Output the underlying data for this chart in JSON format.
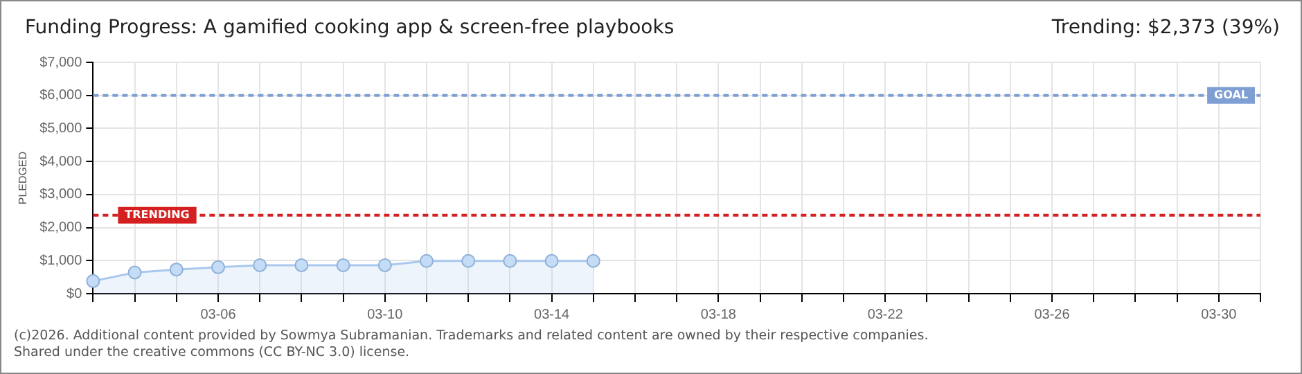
{
  "chart_data": {
    "type": "area",
    "title": "Funding Progress: A gamified cooking app & screen-free playbooks",
    "ylabel": "PLEDGED",
    "categories": [
      null,
      null,
      null,
      "03-06",
      null,
      null,
      null,
      "03-10",
      null,
      null,
      null,
      "03-14",
      null,
      null,
      null,
      "03-18",
      null,
      null,
      null,
      "03-22",
      null,
      null,
      null,
      "03-26",
      null,
      null,
      null,
      "03-30",
      null
    ],
    "series": [
      {
        "color": "#a9c8ee",
        "values": [
          380,
          640,
          730,
          800,
          860,
          860,
          860,
          860,
          990,
          990,
          990,
          990,
          990,
          null,
          null,
          null,
          null,
          null,
          null,
          null,
          null,
          null,
          null,
          null,
          null,
          null,
          null,
          null,
          null
        ]
      }
    ],
    "ylim": [
      0,
      7000
    ],
    "yticks": [
      {
        "value": 0,
        "label": "$0"
      },
      {
        "value": 1000,
        "label": "$1,000"
      },
      {
        "value": 2000,
        "label": "$2,000"
      },
      {
        "value": 3000,
        "label": "$3,000"
      },
      {
        "value": 4000,
        "label": "$4,000"
      },
      {
        "value": 5000,
        "label": "$5,000"
      },
      {
        "value": 6000,
        "label": "$6,000"
      },
      {
        "value": 7000,
        "label": "$7,000"
      }
    ],
    "ref_lines": [
      {
        "axis": "y",
        "value": 6000,
        "label": "GOAL",
        "color": "#7f9fd4",
        "line_style": "dashed"
      },
      {
        "axis": "y",
        "value": 2373,
        "label": "TRENDING",
        "color": "#d42020",
        "line_style": "dashed"
      }
    ],
    "annotations": [
      "Trending: $2,373 (39%)",
      "(c)2026. Additional content provided by Sowmya Subramanian. Trademarks and related content are owned by their respective companies.",
      "Shared under the creative commons (CC BY-NC 3.0) license."
    ],
    "grid": true,
    "marker": "circle",
    "line_style": "solid",
    "legend": false
  }
}
